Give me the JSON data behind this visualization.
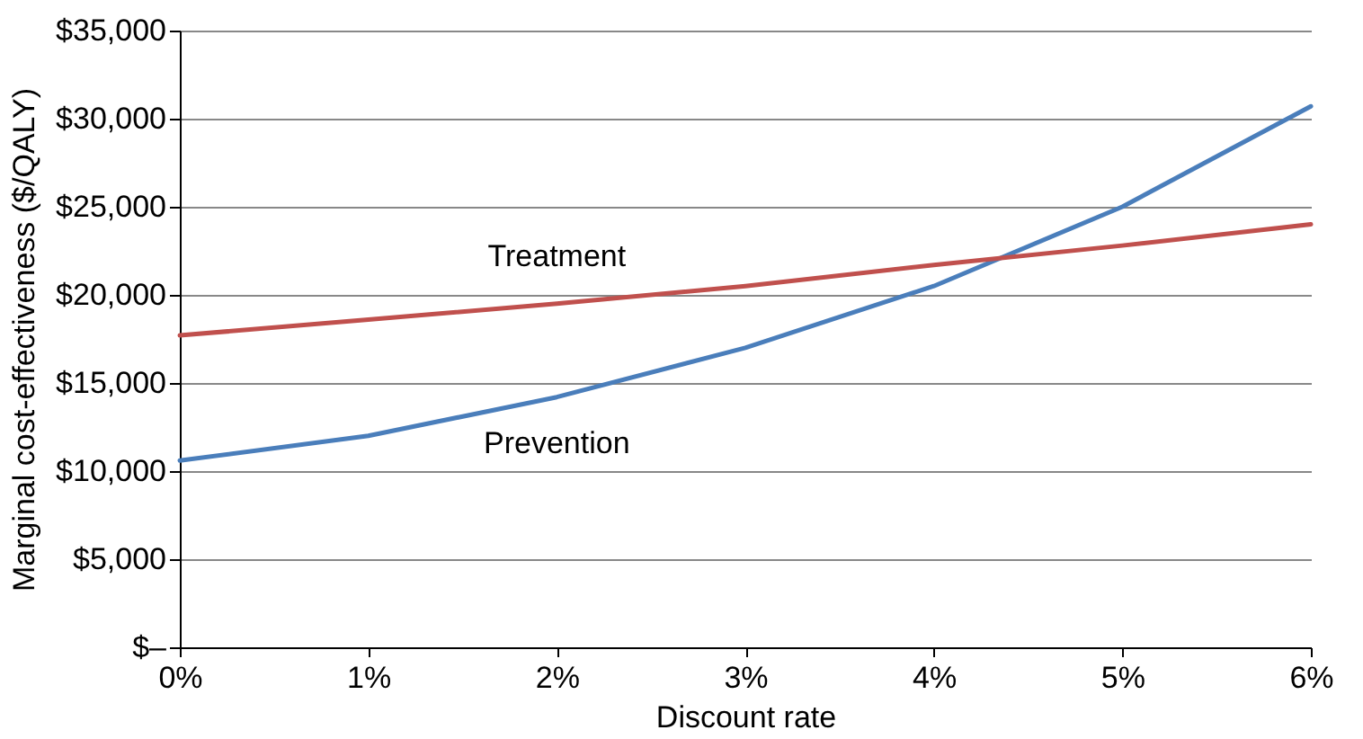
{
  "chart_data": {
    "type": "line",
    "xlabel": "Discount rate",
    "ylabel": "Marginal cost-effectiveness ($/QALY)",
    "x": [
      0,
      1,
      2,
      3,
      4,
      5,
      6
    ],
    "series": [
      {
        "name": "Prevention",
        "color": "#4a7ebb",
        "values": [
          10600,
          12000,
          14200,
          17000,
          20500,
          25000,
          30700
        ]
      },
      {
        "name": "Treatment",
        "color": "#c0504d",
        "values": [
          17700,
          18600,
          19500,
          20500,
          21700,
          22800,
          24000
        ]
      }
    ],
    "xlim": [
      0,
      6
    ],
    "xticks": [
      {
        "value": 0,
        "label": "0%"
      },
      {
        "value": 1,
        "label": "1%"
      },
      {
        "value": 2,
        "label": "2%"
      },
      {
        "value": 3,
        "label": "3%"
      },
      {
        "value": 4,
        "label": "4%"
      },
      {
        "value": 5,
        "label": "5%"
      },
      {
        "value": 6,
        "label": "6%"
      }
    ],
    "ylim": [
      0,
      35000
    ],
    "yticks": [
      {
        "value": 0,
        "label": "$–"
      },
      {
        "value": 5000,
        "label": "$5,000"
      },
      {
        "value": 10000,
        "label": "$10,000"
      },
      {
        "value": 15000,
        "label": "$15,000"
      },
      {
        "value": 20000,
        "label": "$20,000"
      },
      {
        "value": 25000,
        "label": "$25,000"
      },
      {
        "value": 30000,
        "label": "$30,000"
      },
      {
        "value": 35000,
        "label": "$35,000"
      }
    ],
    "grid": "y",
    "legend": false,
    "marker": "none",
    "line_style": "solid"
  }
}
